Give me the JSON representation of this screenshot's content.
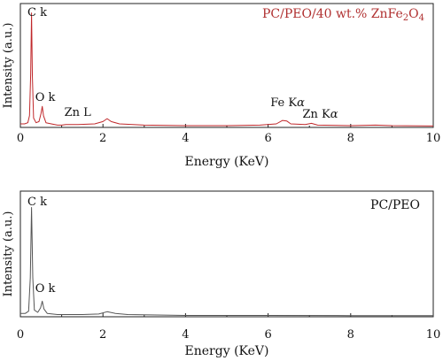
{
  "chart_data": [
    {
      "type": "line",
      "legend": "PC/PEO/40 wt.% ZnFe",
      "legend_sub1": "2",
      "legend_mid": "O",
      "legend_sub2": "4",
      "legend_placement": "top-right",
      "xlabel": "Energy (KeV)",
      "ylabel": "Intensity (a.u.)",
      "xlim": [
        0,
        10
      ],
      "xticks": [
        0,
        2,
        4,
        6,
        8,
        10
      ],
      "grid": false,
      "colors": {
        "spectrum": "#c0282b",
        "text": "#b03030"
      },
      "annotations": [
        {
          "text": "C k",
          "x": 0.28
        },
        {
          "text": "O k",
          "x": 0.53
        },
        {
          "text": "Zn L",
          "x": 1.0
        },
        {
          "text": "Fe K",
          "greek": "α",
          "x": 6.4
        },
        {
          "text": "Zn K",
          "greek": "α",
          "x": 7.05
        }
      ],
      "series": [
        {
          "values_relative_intensity": true,
          "points": [
            [
              0.0,
              0.03
            ],
            [
              0.1,
              0.03
            ],
            [
              0.18,
              0.04
            ],
            [
              0.22,
              0.1
            ],
            [
              0.25,
              0.45
            ],
            [
              0.27,
              0.98
            ],
            [
              0.29,
              0.45
            ],
            [
              0.32,
              0.08
            ],
            [
              0.38,
              0.04
            ],
            [
              0.45,
              0.05
            ],
            [
              0.5,
              0.12
            ],
            [
              0.53,
              0.18
            ],
            [
              0.56,
              0.1
            ],
            [
              0.62,
              0.04
            ],
            [
              0.75,
              0.03
            ],
            [
              0.9,
              0.02
            ],
            [
              1.0,
              0.02
            ],
            [
              1.1,
              0.025
            ],
            [
              1.4,
              0.025
            ],
            [
              1.8,
              0.03
            ],
            [
              2.0,
              0.05
            ],
            [
              2.1,
              0.075
            ],
            [
              2.2,
              0.05
            ],
            [
              2.4,
              0.03
            ],
            [
              3.0,
              0.02
            ],
            [
              4.0,
              0.015
            ],
            [
              5.0,
              0.015
            ],
            [
              5.8,
              0.02
            ],
            [
              6.2,
              0.03
            ],
            [
              6.35,
              0.06
            ],
            [
              6.45,
              0.055
            ],
            [
              6.55,
              0.03
            ],
            [
              6.9,
              0.025
            ],
            [
              7.05,
              0.035
            ],
            [
              7.2,
              0.02
            ],
            [
              8.0,
              0.015
            ],
            [
              8.6,
              0.02
            ],
            [
              9.0,
              0.015
            ],
            [
              10.0,
              0.012
            ]
          ]
        }
      ]
    },
    {
      "type": "line",
      "legend": "PC/PEO",
      "legend_placement": "top-right",
      "xlabel": "Energy (KeV)",
      "ylabel": "Intensity (a.u.)",
      "xlim": [
        0,
        10
      ],
      "xticks": [
        0,
        2,
        4,
        6,
        8,
        10
      ],
      "grid": false,
      "colors": {
        "spectrum": "#555555",
        "text": "#111111"
      },
      "annotations": [
        {
          "text": "C k",
          "x": 0.28
        },
        {
          "text": "O k",
          "x": 0.53
        }
      ],
      "series": [
        {
          "values_relative_intensity": true,
          "points": [
            [
              0.0,
              0.03
            ],
            [
              0.12,
              0.03
            ],
            [
              0.2,
              0.05
            ],
            [
              0.24,
              0.35
            ],
            [
              0.27,
              0.98
            ],
            [
              0.3,
              0.35
            ],
            [
              0.34,
              0.06
            ],
            [
              0.42,
              0.04
            ],
            [
              0.49,
              0.08
            ],
            [
              0.53,
              0.14
            ],
            [
              0.57,
              0.07
            ],
            [
              0.65,
              0.03
            ],
            [
              0.9,
              0.02
            ],
            [
              1.5,
              0.02
            ],
            [
              1.9,
              0.025
            ],
            [
              2.1,
              0.045
            ],
            [
              2.3,
              0.03
            ],
            [
              2.6,
              0.02
            ],
            [
              4.0,
              0.012
            ],
            [
              6.0,
              0.012
            ],
            [
              8.0,
              0.01
            ],
            [
              10.0,
              0.01
            ]
          ]
        }
      ]
    }
  ]
}
